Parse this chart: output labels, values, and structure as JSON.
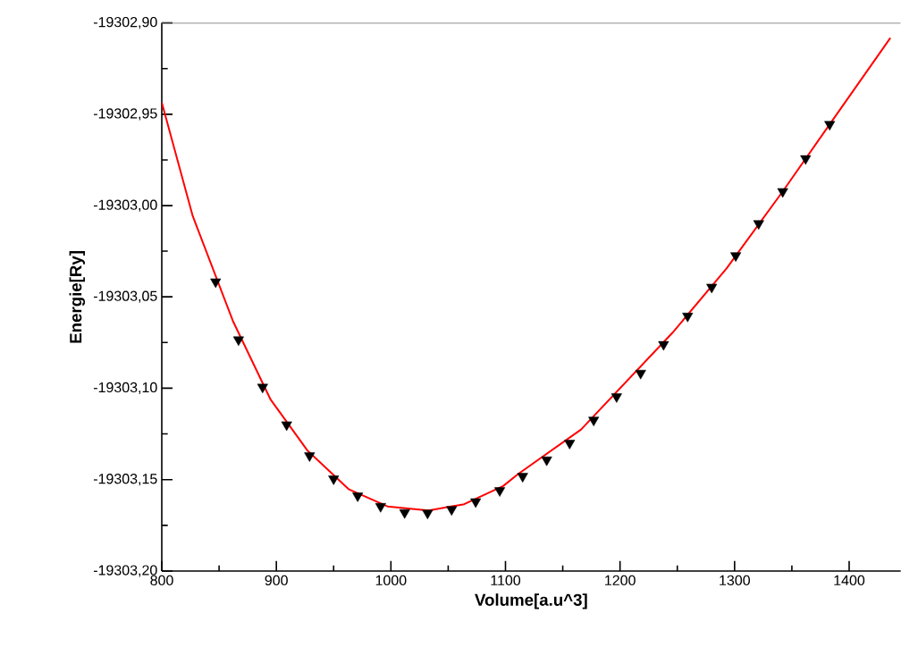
{
  "chart_data": {
    "type": "scatter",
    "xlabel": "Volume[a.u^3]",
    "ylabel": "Energie[Ry]",
    "xlim": [
      800,
      1445
    ],
    "ylim": [
      -19303.2,
      -19302.9
    ],
    "xticks": [
      800,
      900,
      1000,
      1100,
      1200,
      1300,
      1400
    ],
    "yticks": [
      {
        "value": -19303.2,
        "label": "-19303,20"
      },
      {
        "value": -19303.15,
        "label": "-19303,15"
      },
      {
        "value": -19303.1,
        "label": "-19303,10"
      },
      {
        "value": -19303.05,
        "label": "-19303,05"
      },
      {
        "value": -19303.0,
        "label": "-19303,00"
      },
      {
        "value": -19302.95,
        "label": "-19302,95"
      },
      {
        "value": -19302.9,
        "label": "-19302,90"
      }
    ],
    "grid": false,
    "series": [
      {
        "color": "#000000",
        "marker": "triangle",
        "x": [
          847,
          867,
          888,
          909,
          929,
          950,
          971,
          991,
          1012,
          1032,
          1053,
          1074,
          1095,
          1115,
          1136,
          1156,
          1177,
          1197,
          1218,
          1238,
          1259,
          1280,
          1301,
          1321,
          1342,
          1362,
          1383
        ],
        "values": [
          -19303.0417,
          -19303.0735,
          -19303.0994,
          -19303.12,
          -19303.1369,
          -19303.1495,
          -19303.1588,
          -19303.1647,
          -19303.168,
          -19303.1683,
          -19303.1663,
          -19303.1621,
          -19303.156,
          -19303.1482,
          -19303.1392,
          -19303.13,
          -19303.1173,
          -19303.1046,
          -19303.0918,
          -19303.076,
          -19303.0604,
          -19303.0446,
          -19303.0273,
          -19303.0098,
          -19302.9922,
          -19302.9742,
          -19302.9555
        ]
      },
      {
        "type": "line",
        "color": "#ff0000",
        "marker": "none",
        "line_style": "solid",
        "x": [
          800,
          827,
          862,
          895,
          927,
          963,
          997,
          1033,
          1064,
          1098,
          1111,
          1166,
          1246,
          1293,
          1342,
          1383,
          1436
        ],
        "values": [
          -19302.9436,
          -19303.0057,
          -19303.063,
          -19303.1062,
          -19303.134,
          -19303.1552,
          -19303.1647,
          -19303.167,
          -19303.1634,
          -19303.1536,
          -19303.147,
          -19303.1225,
          -19303.0695,
          -19303.0343,
          -19302.9922,
          -19302.9555,
          -19302.9082
        ]
      }
    ]
  }
}
